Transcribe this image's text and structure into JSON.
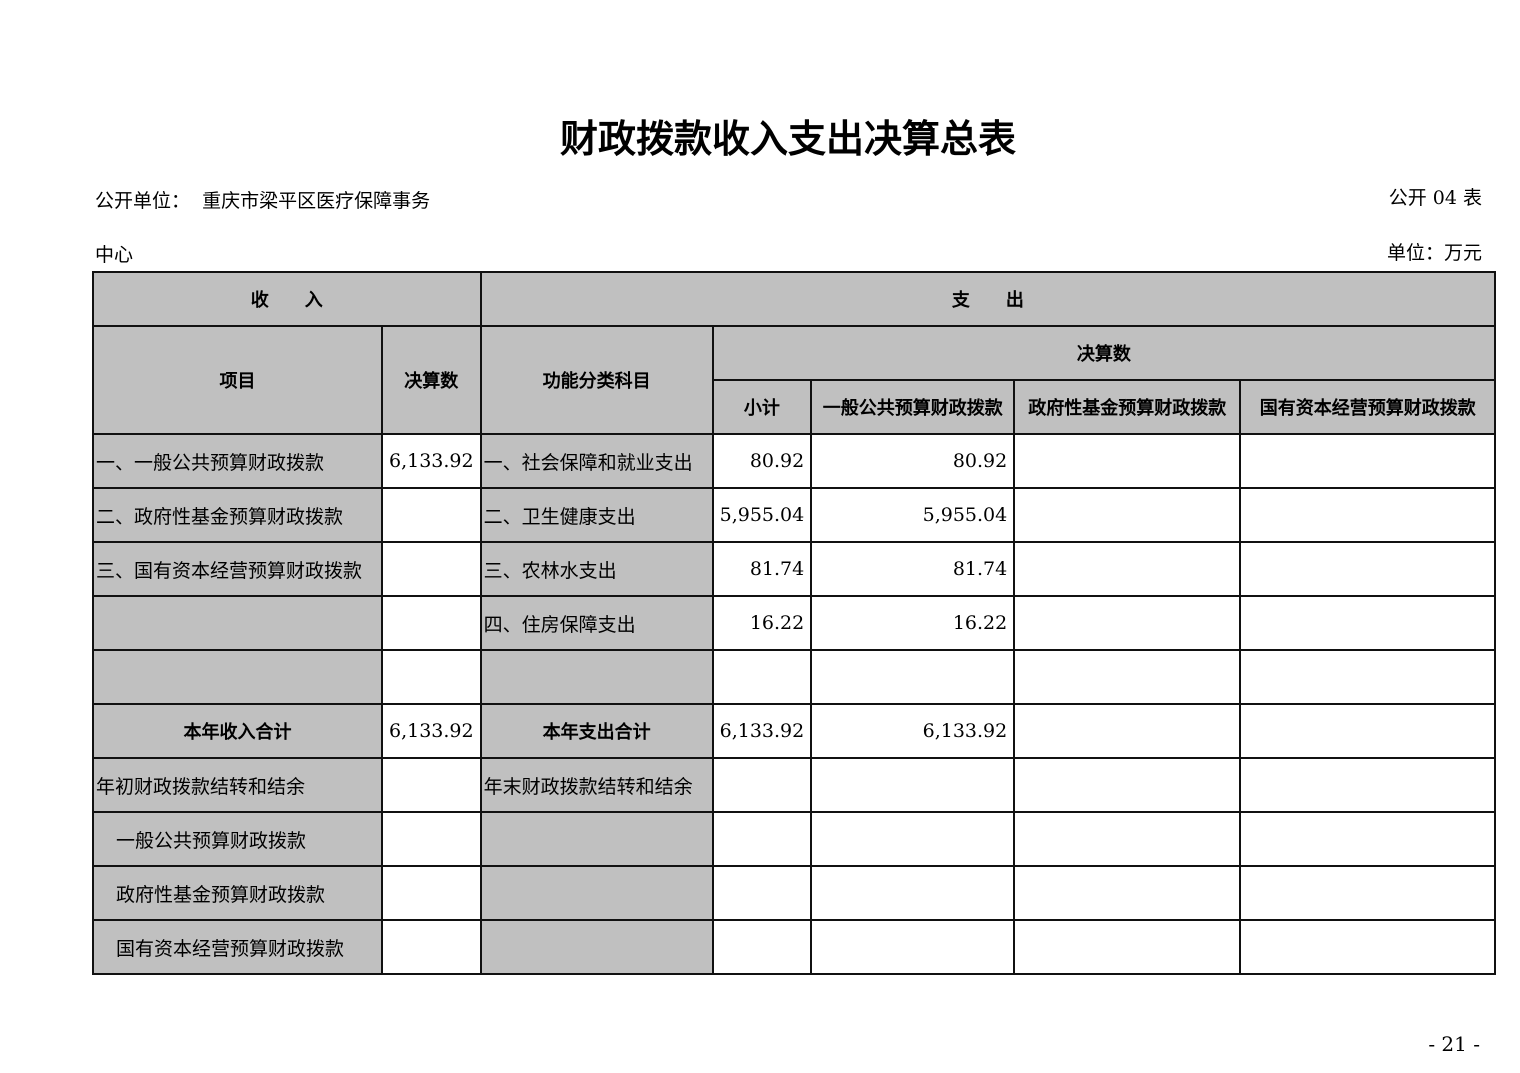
{
  "title": "财政拨款收入支出决算总表",
  "unit_label": "公开单位：",
  "unit_name_line1": "重庆市梁平区医疗保障事务",
  "unit_name_line2": "中心",
  "table_no": "公开 04 表",
  "money_unit": "单位：万元",
  "header": {
    "income": "收　　入",
    "expense": "支　　出",
    "item": "项目",
    "amount": "决算数",
    "func": "功能分类科目",
    "amount_group": "决算数",
    "subtotal": "小计",
    "general": "一般公共预算财政拨款",
    "fund": "政府性基金预算财政拨款",
    "state": "国有资本经营预算财政拨款"
  },
  "rows": [
    {
      "income_item": "一、一般公共预算财政拨款",
      "income_amt": "6,133.92",
      "func": "一、社会保障和就业支出",
      "subtotal": "80.92",
      "general": "80.92",
      "fund": "",
      "state": ""
    },
    {
      "income_item": "二、政府性基金预算财政拨款",
      "income_amt": "",
      "func": "二、卫生健康支出",
      "subtotal": "5,955.04",
      "general": "5,955.04",
      "fund": "",
      "state": ""
    },
    {
      "income_item": "三、国有资本经营预算财政拨款",
      "income_amt": "",
      "func": "三、农林水支出",
      "subtotal": "81.74",
      "general": "81.74",
      "fund": "",
      "state": ""
    },
    {
      "income_item": "",
      "income_amt": "",
      "func": "四、住房保障支出",
      "subtotal": "16.22",
      "general": "16.22",
      "fund": "",
      "state": ""
    },
    {
      "income_item": "",
      "income_amt": "",
      "func": "",
      "subtotal": "",
      "general": "",
      "fund": "",
      "state": ""
    }
  ],
  "totals": {
    "income_label": "本年收入合计",
    "income_amt": "6,133.92",
    "expense_label": "本年支出合计",
    "subtotal": "6,133.92",
    "general": "6,133.92",
    "fund": "",
    "state": ""
  },
  "carry": [
    {
      "income_item": "年初财政拨款结转和结余",
      "func": "年末财政拨款结转和结余"
    },
    {
      "income_item": "一般公共预算财政拨款",
      "func": ""
    },
    {
      "income_item": "政府性基金预算财政拨款",
      "func": ""
    },
    {
      "income_item": "国有资本经营预算财政拨款",
      "func": ""
    }
  ],
  "page_number": "- 21 -"
}
